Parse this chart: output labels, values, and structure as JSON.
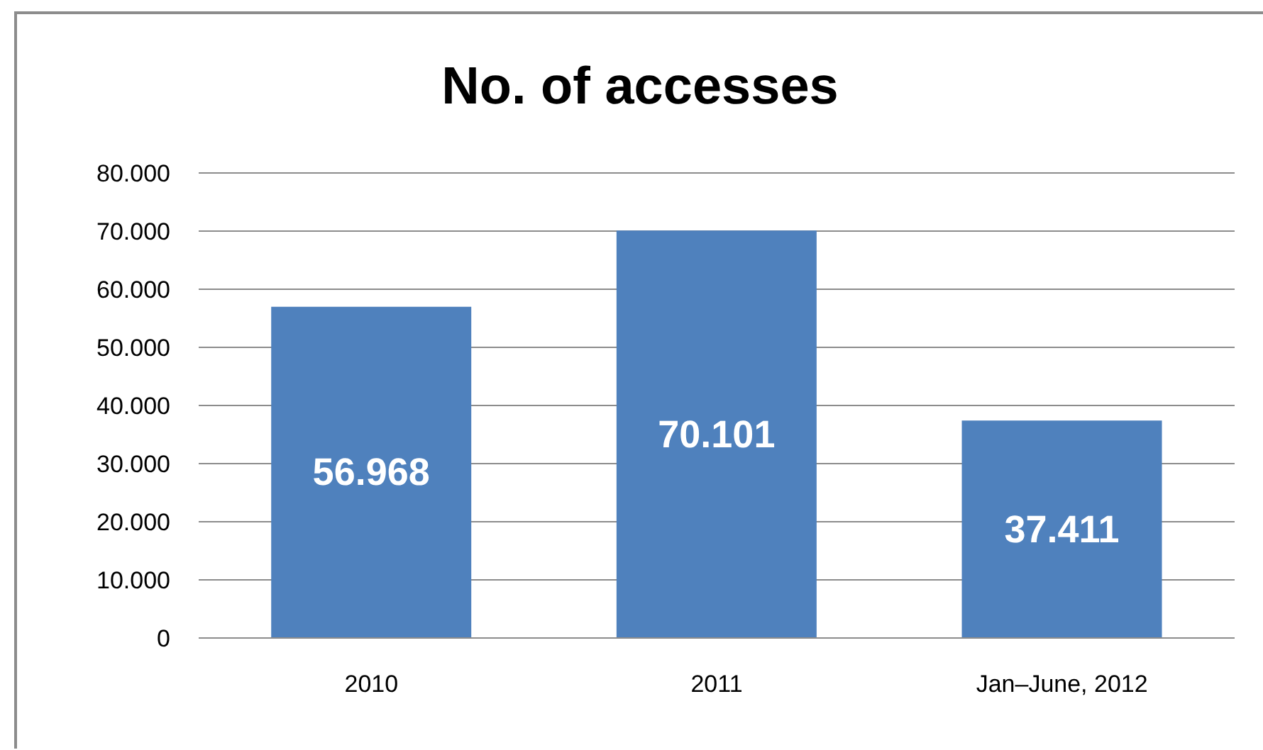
{
  "chart_data": {
    "type": "bar",
    "title": "No. of accesses",
    "categories": [
      "2010",
      "2011",
      "Jan–June, 2012"
    ],
    "values": [
      56968,
      70101,
      37411
    ],
    "value_labels": [
      "56.968",
      "70.101",
      "37.411"
    ],
    "color": "#4f81bd",
    "ylim": [
      0,
      80000
    ],
    "yticks": [
      {
        "value": 0,
        "label": "0"
      },
      {
        "value": 10000,
        "label": "10.000"
      },
      {
        "value": 20000,
        "label": "20.000"
      },
      {
        "value": 30000,
        "label": "30.000"
      },
      {
        "value": 40000,
        "label": "40.000"
      },
      {
        "value": 50000,
        "label": "50.000"
      },
      {
        "value": 60000,
        "label": "60.000"
      },
      {
        "value": 70000,
        "label": "70.000"
      },
      {
        "value": 80000,
        "label": "80.000"
      }
    ],
    "grid": "y",
    "legend": false
  }
}
